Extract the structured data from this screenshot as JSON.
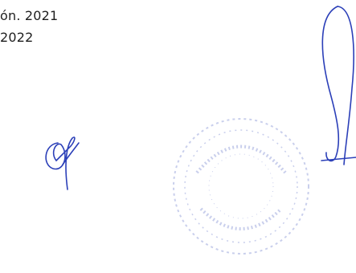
{
  "document": {
    "lines": [
      "ón. 2021",
      "2022"
    ]
  }
}
